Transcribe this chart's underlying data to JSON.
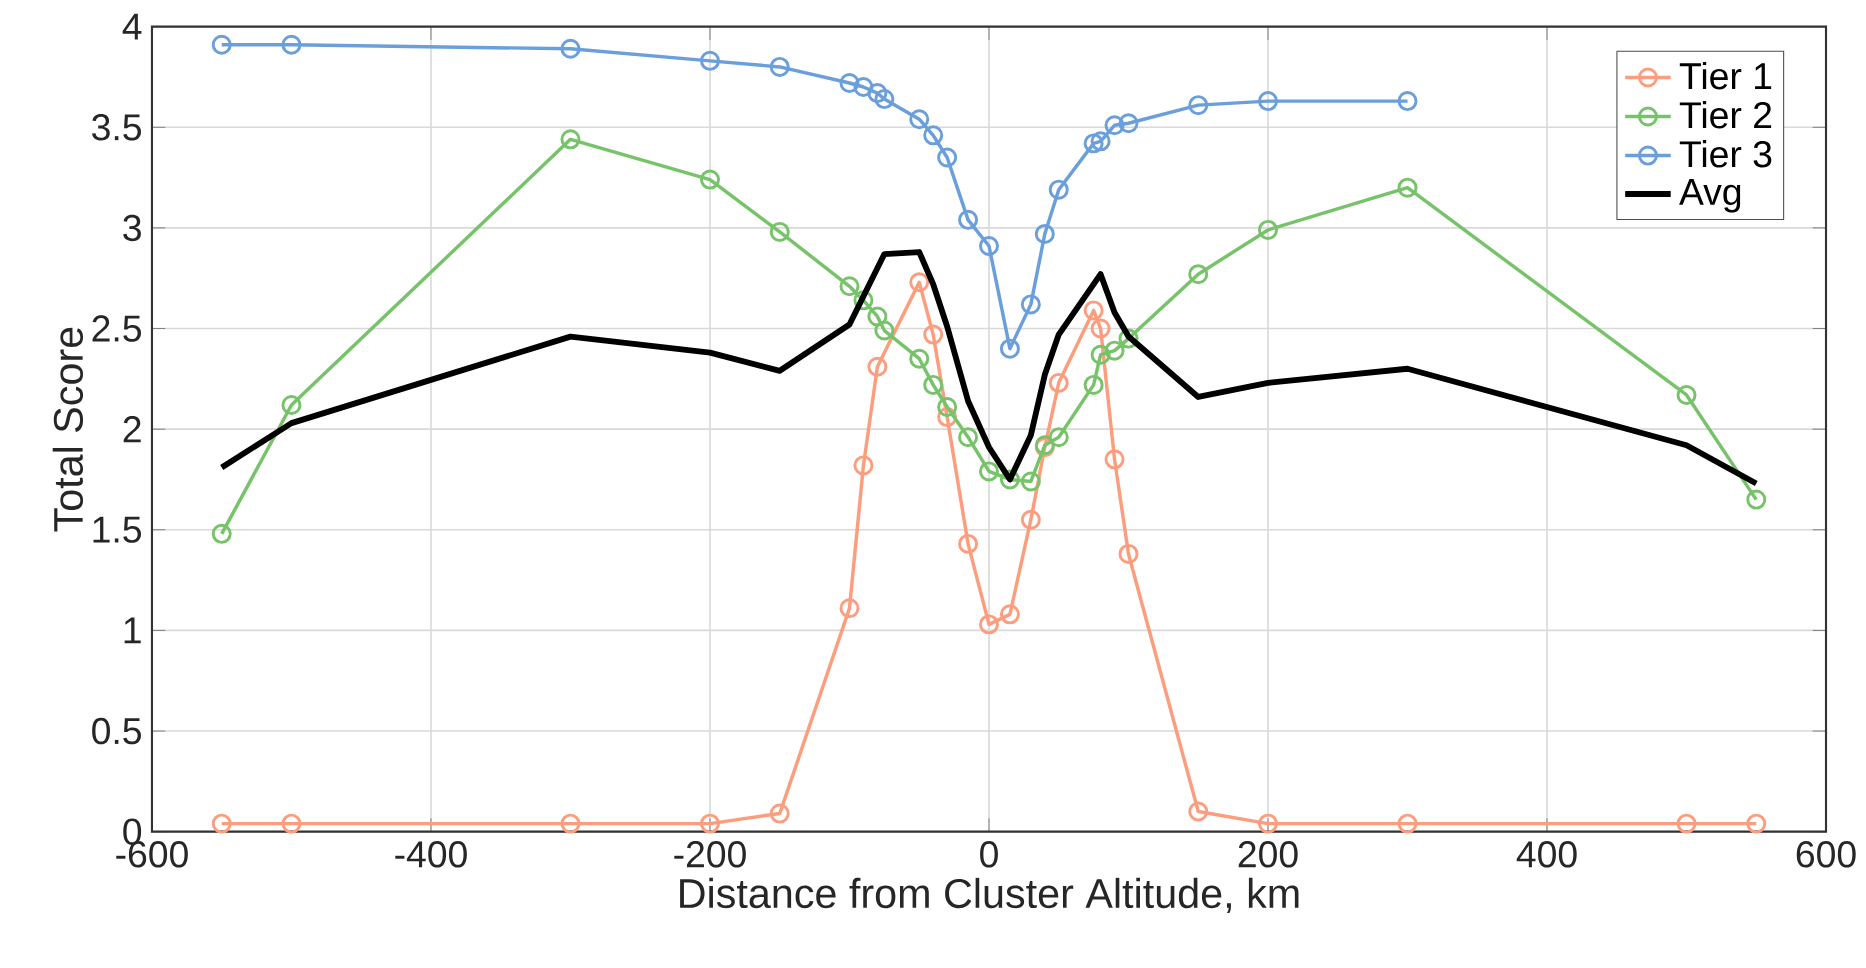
{
  "chart_data": {
    "type": "line",
    "xlabel": "Distance from Cluster Altitude, km",
    "ylabel": "Total Score",
    "xlim": [
      -600,
      600
    ],
    "xticks": [
      -600,
      -400,
      -200,
      0,
      200,
      400,
      600
    ],
    "ylim": [
      0,
      4
    ],
    "yticks": [
      0,
      0.5,
      1,
      1.5,
      2,
      2.5,
      3,
      3.5,
      4
    ],
    "grid": true,
    "legend": "top right",
    "marker": "circle",
    "series": [
      {
        "name": "Tier 1",
        "color": "#fc9e7e",
        "x": [
          -550,
          -500,
          -300,
          -200,
          -150,
          -100,
          -90,
          -80,
          -50,
          -40,
          -30,
          -15,
          0,
          15,
          30,
          40,
          50,
          75,
          80,
          90,
          100,
          150,
          200,
          300,
          500,
          550
        ],
        "values": [
          0.04,
          0.04,
          0.04,
          0.04,
          0.09,
          1.11,
          1.82,
          2.31,
          2.73,
          2.47,
          2.06,
          1.43,
          1.03,
          1.08,
          1.55,
          1.91,
          2.23,
          2.59,
          2.5,
          1.85,
          1.38,
          0.1,
          0.04,
          0.04,
          0.04,
          0.04
        ]
      },
      {
        "name": "Tier 2",
        "color": "#77c36a",
        "x": [
          -550,
          -500,
          -300,
          -200,
          -150,
          -100,
          -90,
          -80,
          -75,
          -50,
          -40,
          -30,
          -15,
          0,
          15,
          30,
          40,
          50,
          75,
          80,
          90,
          100,
          150,
          200,
          300,
          500,
          550
        ],
        "values": [
          1.48,
          2.12,
          3.44,
          3.24,
          2.98,
          2.71,
          2.64,
          2.56,
          2.49,
          2.35,
          2.22,
          2.11,
          1.96,
          1.79,
          1.75,
          1.74,
          1.92,
          1.96,
          2.22,
          2.37,
          2.39,
          2.45,
          2.77,
          2.99,
          3.2,
          2.17,
          1.65
        ]
      },
      {
        "name": "Tier 3",
        "color": "#6a9fdc",
        "x": [
          -550,
          -500,
          -300,
          -200,
          -150,
          -100,
          -90,
          -80,
          -75,
          -50,
          -40,
          -30,
          -15,
          0,
          15,
          30,
          40,
          50,
          75,
          80,
          90,
          100,
          150,
          200,
          300
        ],
        "values": [
          3.91,
          3.91,
          3.89,
          3.83,
          3.8,
          3.72,
          3.7,
          3.67,
          3.64,
          3.54,
          3.46,
          3.35,
          3.04,
          2.91,
          2.4,
          2.62,
          2.97,
          3.19,
          3.42,
          3.43,
          3.51,
          3.52,
          3.61,
          3.63,
          3.63
        ]
      },
      {
        "name": "Avg",
        "color": "#000000",
        "marker": "none",
        "x": [
          -550,
          -500,
          -300,
          -200,
          -150,
          -100,
          -75,
          -50,
          -40,
          -30,
          -15,
          0,
          15,
          30,
          40,
          50,
          80,
          90,
          100,
          150,
          200,
          300,
          500,
          550
        ],
        "values": [
          1.81,
          2.03,
          2.46,
          2.38,
          2.29,
          2.52,
          2.87,
          2.88,
          2.72,
          2.51,
          2.14,
          1.91,
          1.75,
          1.97,
          2.27,
          2.47,
          2.77,
          2.58,
          2.46,
          2.16,
          2.23,
          2.3,
          1.92,
          1.73
        ]
      }
    ]
  }
}
